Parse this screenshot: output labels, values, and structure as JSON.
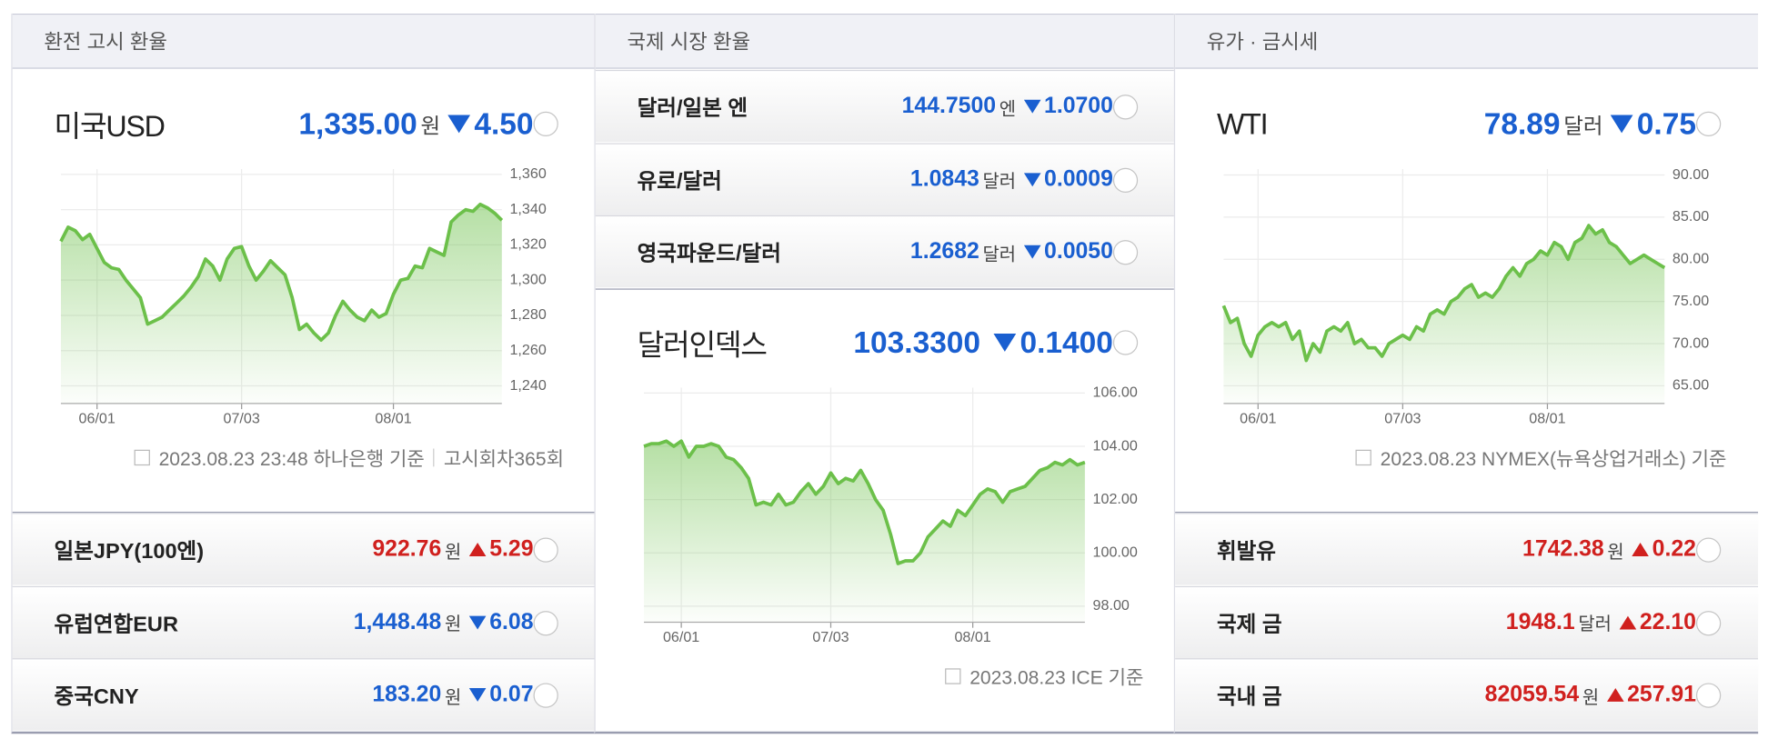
{
  "columns": [
    {
      "title": "환전 고시 환율",
      "main": {
        "name": "미국USD",
        "value": "1,335.00",
        "unit": "원",
        "change": "4.50",
        "direction": "down",
        "chart": {
          "type": "line",
          "color": "#6cc04a",
          "values": [
            1322,
            1330,
            1328,
            1323,
            1326,
            1318,
            1310,
            1307,
            1306,
            1300,
            1295,
            1290,
            1275,
            1277,
            1279,
            1283,
            1287,
            1291,
            1296,
            1302,
            1312,
            1308,
            1300,
            1312,
            1318,
            1319,
            1308,
            1300,
            1305,
            1311,
            1307,
            1303,
            1290,
            1272,
            1275,
            1270,
            1266,
            1270,
            1280,
            1288,
            1283,
            1279,
            1277,
            1283,
            1279,
            1281,
            1292,
            1300,
            1301,
            1308,
            1307,
            1318,
            1316,
            1314,
            1333,
            1337,
            1340,
            1339,
            1343,
            1341,
            1338,
            1334
          ],
          "xlim": [
            0,
            61
          ],
          "xticks": [
            {
              "value": 5,
              "label": "06/01"
            },
            {
              "value": 25,
              "label": "07/03"
            },
            {
              "value": 46,
              "label": "08/01"
            }
          ],
          "ylim": [
            1230,
            1363
          ],
          "yticks": [
            {
              "value": 1240,
              "label": "1,240"
            },
            {
              "value": 1260,
              "label": "1,260"
            },
            {
              "value": 1280,
              "label": "1,280"
            },
            {
              "value": 1300,
              "label": "1,300"
            },
            {
              "value": 1320,
              "label": "1,320"
            },
            {
              "value": 1340,
              "label": "1,340"
            },
            {
              "value": 1360,
              "label": "1,360"
            }
          ],
          "grid": true
        }
      },
      "footnote": [
        "2023.08.23 23:48 하나은행 기준",
        "고시회차365회"
      ],
      "items": [
        {
          "name": "일본JPY(100엔)",
          "value": "922.76",
          "unit": "원",
          "change": "5.29",
          "direction": "up"
        },
        {
          "name": "유럽연합EUR",
          "value": "1,448.48",
          "unit": "원",
          "change": "6.08",
          "direction": "down"
        },
        {
          "name": "중국CNY",
          "value": "183.20",
          "unit": "원",
          "change": "0.07",
          "direction": "down"
        }
      ]
    },
    {
      "title": "국제 시장 환율",
      "items": [
        {
          "name": "달러/일본 엔",
          "value": "144.7500",
          "unit": "엔",
          "change": "1.0700",
          "direction": "down"
        },
        {
          "name": "유로/달러",
          "value": "1.0843",
          "unit": "달러",
          "change": "0.0009",
          "direction": "down"
        },
        {
          "name": "영국파운드/달러",
          "value": "1.2682",
          "unit": "달러",
          "change": "0.0050",
          "direction": "down"
        }
      ],
      "main": {
        "name": "달러인덱스",
        "value": "103.3300",
        "change": "0.1400",
        "direction": "down",
        "chart": {
          "type": "line",
          "color": "#6cc04a",
          "values": [
            104.0,
            104.1,
            104.1,
            104.2,
            104.0,
            104.2,
            103.6,
            104.0,
            104.0,
            104.1,
            104.0,
            103.6,
            103.5,
            103.2,
            102.8,
            101.8,
            101.9,
            101.8,
            102.2,
            101.8,
            101.9,
            102.3,
            102.6,
            102.2,
            102.5,
            103.0,
            102.6,
            102.8,
            102.7,
            103.1,
            102.6,
            102.0,
            101.6,
            100.7,
            99.6,
            99.7,
            99.7,
            100.0,
            100.6,
            100.9,
            101.2,
            101.0,
            101.6,
            101.4,
            101.8,
            102.2,
            102.4,
            102.3,
            101.9,
            102.3,
            102.4,
            102.5,
            102.8,
            103.1,
            103.2,
            103.4,
            103.3,
            103.5,
            103.3,
            103.4
          ],
          "xlim": [
            0,
            59
          ],
          "xticks": [
            {
              "value": 5,
              "label": "06/01"
            },
            {
              "value": 25,
              "label": "07/03"
            },
            {
              "value": 44,
              "label": "08/01"
            }
          ],
          "ylim": [
            97.4,
            106.2
          ],
          "yticks": [
            {
              "value": 98,
              "label": "98.00"
            },
            {
              "value": 100,
              "label": "100.00"
            },
            {
              "value": 102,
              "label": "102.00"
            },
            {
              "value": 104,
              "label": "104.00"
            },
            {
              "value": 106,
              "label": "106.00"
            }
          ],
          "grid": true
        }
      },
      "footnote": [
        "2023.08.23 ICE 기준"
      ]
    },
    {
      "title": "유가 · 금시세",
      "main": {
        "name": "WTI",
        "value": "78.89",
        "unit": "달러",
        "change": "0.75",
        "direction": "down",
        "chart": {
          "type": "line",
          "color": "#6cc04a",
          "values": [
            74.5,
            72.5,
            73,
            70,
            68.5,
            71,
            72,
            72.5,
            72,
            72.5,
            70.5,
            71.5,
            68,
            70,
            69,
            71.5,
            72,
            71.5,
            72.5,
            70,
            70.5,
            69.5,
            69.5,
            68.5,
            70,
            70.5,
            71,
            70.5,
            72,
            71.5,
            73.5,
            74,
            73.5,
            75,
            75.5,
            76.5,
            77,
            75.5,
            76,
            75.5,
            76.5,
            78,
            79,
            78,
            79.5,
            80,
            81,
            80.5,
            82,
            81.5,
            80,
            82,
            82.5,
            84,
            83,
            83.5,
            82,
            81.5,
            80.5,
            79.5,
            80,
            80.5,
            80,
            79.5,
            79
          ],
          "xlim": [
            0,
            64
          ],
          "xticks": [
            {
              "value": 5,
              "label": "06/01"
            },
            {
              "value": 26,
              "label": "07/03"
            },
            {
              "value": 47,
              "label": "08/01"
            }
          ],
          "ylim": [
            62.9,
            90.7
          ],
          "yticks": [
            {
              "value": 65,
              "label": "65.00"
            },
            {
              "value": 70,
              "label": "70.00"
            },
            {
              "value": 75,
              "label": "75.00"
            },
            {
              "value": 80,
              "label": "80.00"
            },
            {
              "value": 85,
              "label": "85.00"
            },
            {
              "value": 90,
              "label": "90.00"
            }
          ],
          "grid": true
        }
      },
      "footnote": [
        "2023.08.23 NYMEX(뉴욕상업거래소) 기준"
      ],
      "items": [
        {
          "name": "휘발유",
          "value": "1742.38",
          "unit": "원",
          "change": "0.22",
          "direction": "up"
        },
        {
          "name": "국제 금",
          "value": "1948.1",
          "unit": "달러",
          "change": "22.10",
          "direction": "up"
        },
        {
          "name": "국내 금",
          "value": "82059.54",
          "unit": "원",
          "change": "257.91",
          "direction": "up"
        }
      ]
    }
  ]
}
